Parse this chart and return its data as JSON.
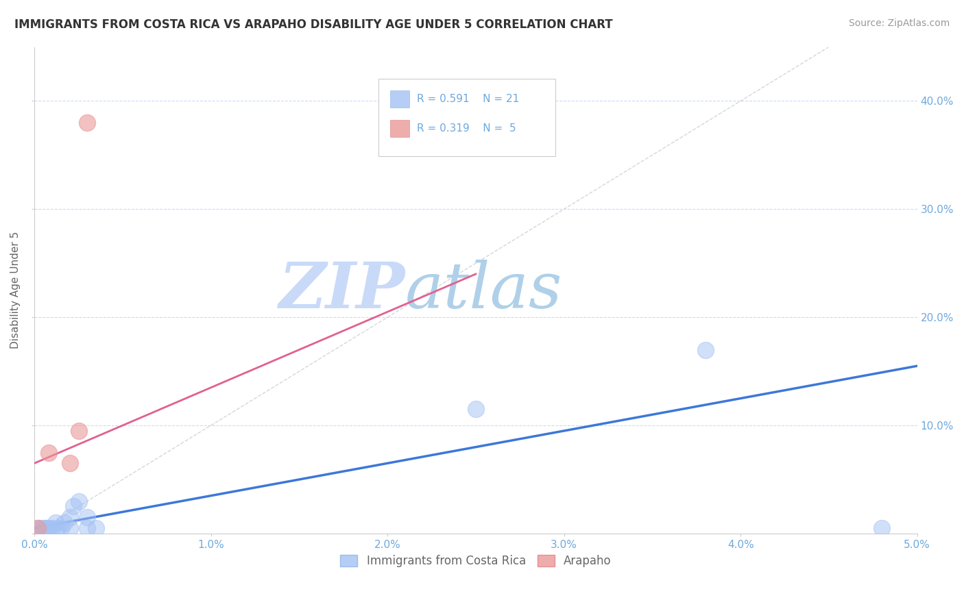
{
  "title": "IMMIGRANTS FROM COSTA RICA VS ARAPAHO DISABILITY AGE UNDER 5 CORRELATION CHART",
  "source": "Source: ZipAtlas.com",
  "ylabel": "Disability Age Under 5",
  "xlabel_legend_blue": "Immigrants from Costa Rica",
  "xlabel_legend_pink": "Arapaho",
  "legend_r_blue": "R = 0.591",
  "legend_n_blue": "N = 21",
  "legend_r_pink": "R = 0.319",
  "legend_n_pink": "N =  5",
  "xlim": [
    0.0,
    0.05
  ],
  "ylim": [
    0.0,
    0.45
  ],
  "xticks": [
    0.0,
    0.01,
    0.02,
    0.03,
    0.04,
    0.05
  ],
  "yticks": [
    0.0,
    0.1,
    0.2,
    0.3,
    0.4
  ],
  "xtick_labels": [
    "0.0%",
    "1.0%",
    "2.0%",
    "3.0%",
    "4.0%",
    "5.0%"
  ],
  "ytick_labels_left": [
    "",
    "",
    "",
    "",
    ""
  ],
  "ytick_labels_right": [
    "",
    "10.0%",
    "20.0%",
    "30.0%",
    "40.0%"
  ],
  "blue_scatter_x": [
    0.0002,
    0.0003,
    0.0005,
    0.0006,
    0.0007,
    0.0008,
    0.001,
    0.0012,
    0.0013,
    0.0015,
    0.0017,
    0.002,
    0.002,
    0.0022,
    0.0025,
    0.003,
    0.003,
    0.0035,
    0.025,
    0.038,
    0.048
  ],
  "blue_scatter_y": [
    0.005,
    0.005,
    0.005,
    0.005,
    0.005,
    0.005,
    0.005,
    0.01,
    0.005,
    0.005,
    0.01,
    0.005,
    0.015,
    0.025,
    0.03,
    0.005,
    0.015,
    0.005,
    0.115,
    0.17,
    0.005
  ],
  "pink_scatter_x": [
    0.0002,
    0.0008,
    0.002,
    0.0025,
    0.003
  ],
  "pink_scatter_y": [
    0.005,
    0.075,
    0.065,
    0.095,
    0.38
  ],
  "blue_line_x": [
    0.0,
    0.05
  ],
  "blue_line_y": [
    0.005,
    0.155
  ],
  "pink_line_x": [
    0.0,
    0.025
  ],
  "pink_line_y": [
    0.065,
    0.24
  ],
  "diag_line_x": [
    0.0,
    0.045
  ],
  "diag_line_y": [
    0.0,
    0.45
  ],
  "blue_color": "#a4c2f4",
  "pink_color": "#ea9999",
  "blue_line_color": "#3c78d8",
  "pink_line_color": "#e06090",
  "diag_color": "#cccccc",
  "title_color": "#333333",
  "axis_color": "#6fa8dc",
  "watermark_zip_color": "#c9daf8",
  "watermark_atlas_color": "#b4d0e7",
  "bg_color": "#ffffff",
  "grid_color": "#c9daf8"
}
